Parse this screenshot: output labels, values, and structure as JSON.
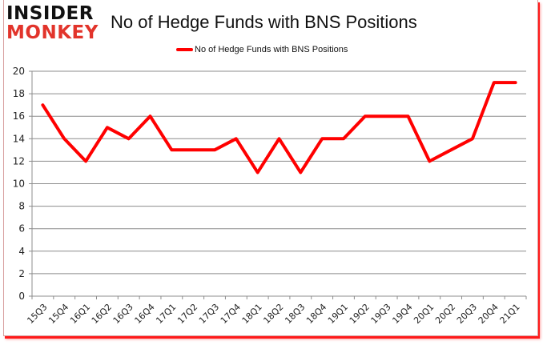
{
  "logo": {
    "line1": "INSIDER",
    "line2": "MONKEY"
  },
  "chart_data": {
    "type": "line",
    "title": "No of Hedge Funds with BNS Positions",
    "xlabel": "",
    "ylabel": "",
    "categories": [
      "15Q3",
      "15Q4",
      "16Q1",
      "16Q2",
      "16Q3",
      "16Q4",
      "17Q1",
      "17Q2",
      "17Q3",
      "17Q4",
      "18Q1",
      "18Q2",
      "18Q3",
      "18Q4",
      "19Q1",
      "19Q2",
      "19Q3",
      "19Q4",
      "20Q1",
      "20Q2",
      "20Q3",
      "20Q4",
      "21Q1"
    ],
    "series": [
      {
        "name": "No of Hedge Funds with BNS Positions",
        "color": "#ff0000",
        "values": [
          17,
          14,
          12,
          15,
          14,
          16,
          13,
          13,
          13,
          14,
          11,
          14,
          11,
          14,
          14,
          16,
          16,
          16,
          12,
          13,
          14,
          19,
          19
        ]
      }
    ],
    "ylim": [
      0,
      20
    ],
    "yticks": [
      0,
      2,
      4,
      6,
      8,
      10,
      12,
      14,
      16,
      18,
      20
    ],
    "grid": true,
    "legend_position": "top"
  }
}
